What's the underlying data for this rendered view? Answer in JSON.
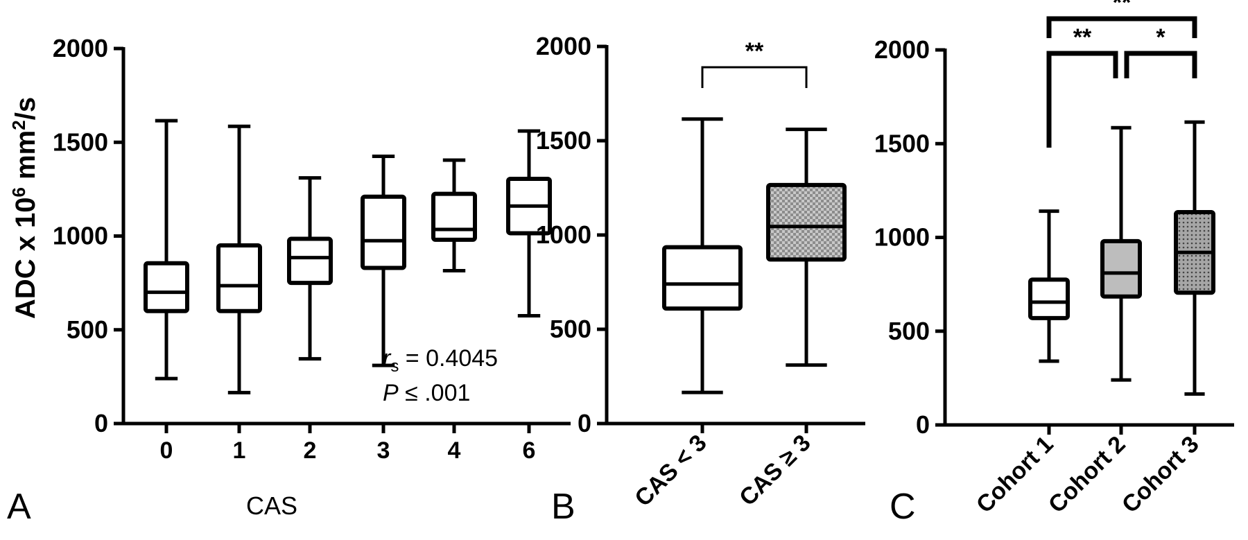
{
  "colors": {
    "ink": "#000000",
    "background": "#ffffff",
    "gray_fill": "#bdbdbd",
    "checker_fill": "#999999",
    "dot_fill": "#8a8a8a"
  },
  "ylabel": {
    "main": "ADC x 10",
    "exp1": "6",
    "mid": " mm",
    "exp2": "2",
    "tail": "/s"
  },
  "chart_data": [
    {
      "panel": "A",
      "type": "boxplot",
      "xlabel": "CAS",
      "ylim": [
        0,
        2000
      ],
      "yticks": [
        "0",
        "500",
        "1000",
        "1500",
        "2000"
      ],
      "categories": [
        "0",
        "1",
        "2",
        "3",
        "4",
        "6"
      ],
      "boxes": [
        {
          "min": 240,
          "q1": 600,
          "median": 700,
          "q3": 855,
          "max": 1615,
          "fill": "none"
        },
        {
          "min": 165,
          "q1": 600,
          "median": 735,
          "q3": 950,
          "max": 1585,
          "fill": "none"
        },
        {
          "min": 345,
          "q1": 750,
          "median": 885,
          "q3": 985,
          "max": 1310,
          "fill": "none"
        },
        {
          "min": 310,
          "q1": 830,
          "median": 975,
          "q3": 1210,
          "max": 1425,
          "fill": "none"
        },
        {
          "min": 815,
          "q1": 980,
          "median": 1035,
          "q3": 1225,
          "max": 1405,
          "fill": "none"
        },
        {
          "min": 575,
          "q1": 1015,
          "median": 1160,
          "q3": 1305,
          "max": 1560,
          "fill": "none"
        }
      ],
      "annotation": {
        "r_symbol": "r",
        "r_sub": "s",
        "r_value": " = 0.4045",
        "p_symbol": "P",
        "p_value": " ≤ .001"
      }
    },
    {
      "panel": "B",
      "type": "boxplot",
      "ylim": [
        0,
        2000
      ],
      "yticks": [
        "0",
        "500",
        "1000",
        "1500",
        "2000"
      ],
      "categories": [
        "CAS < 3",
        "CAS ≥ 3"
      ],
      "boxes": [
        {
          "min": 165,
          "q1": 610,
          "median": 740,
          "q3": 935,
          "max": 1615,
          "fill": "none"
        },
        {
          "min": 310,
          "q1": 870,
          "median": 1045,
          "q3": 1265,
          "max": 1560,
          "fill": "checker"
        }
      ],
      "brackets": [
        {
          "from": 0,
          "to": 1,
          "label": "**"
        }
      ]
    },
    {
      "panel": "C",
      "type": "boxplot",
      "ylim": [
        0,
        2000
      ],
      "yticks": [
        "0",
        "500",
        "1000",
        "1500",
        "2000"
      ],
      "categories": [
        "Cohort 1",
        "Cohort 2",
        "Cohort 3"
      ],
      "boxes": [
        {
          "min": 340,
          "q1": 570,
          "median": 655,
          "q3": 775,
          "max": 1140,
          "fill": "none"
        },
        {
          "min": 240,
          "q1": 685,
          "median": 810,
          "q3": 980,
          "max": 1585,
          "fill": "gray"
        },
        {
          "min": 165,
          "q1": 705,
          "median": 920,
          "q3": 1135,
          "max": 1615,
          "fill": "dots"
        }
      ],
      "brackets": [
        {
          "from": 0,
          "to": 1,
          "label": "**"
        },
        {
          "from": 1,
          "to": 2,
          "label": "*"
        },
        {
          "from": 0,
          "to": 2,
          "label": "**"
        }
      ]
    }
  ]
}
